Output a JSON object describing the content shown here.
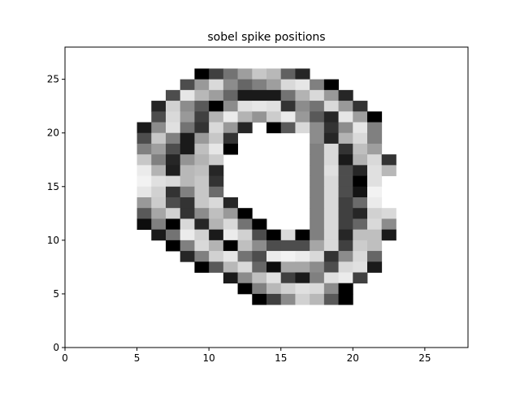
{
  "chart_data": {
    "type": "heatmap",
    "title": "sobel spike positions",
    "xlabel": "",
    "ylabel": "",
    "xlim": [
      0,
      28
    ],
    "ylim": [
      0,
      28
    ],
    "x_ticks": [
      0,
      5,
      10,
      15,
      20,
      25
    ],
    "y_ticks": [
      0,
      5,
      10,
      15,
      20,
      25
    ],
    "x_tick_labels": [
      "0",
      "5",
      "10",
      "15",
      "20",
      "25"
    ],
    "y_tick_labels": [
      "0",
      "5",
      "10",
      "15",
      "20",
      "25"
    ],
    "grid": false,
    "colormap": "gray (0 = black, 1 = white)",
    "background_value": 1.0,
    "cell_size": 1,
    "cells_note": "[x, y, intensity] for each non-white unit cell; x,y are lower-left corner in data units",
    "cells": [
      [
        9,
        25,
        0.0
      ],
      [
        10,
        25,
        0.25
      ],
      [
        11,
        25,
        0.45
      ],
      [
        12,
        25,
        0.62
      ],
      [
        13,
        25,
        0.78
      ],
      [
        14,
        25,
        0.72
      ],
      [
        15,
        25,
        0.38
      ],
      [
        16,
        25,
        0.15
      ],
      [
        8,
        24,
        0.3
      ],
      [
        9,
        24,
        0.6
      ],
      [
        10,
        24,
        0.85
      ],
      [
        11,
        24,
        0.55
      ],
      [
        12,
        24,
        0.4
      ],
      [
        13,
        24,
        0.5
      ],
      [
        14,
        24,
        0.62
      ],
      [
        15,
        24,
        0.85
      ],
      [
        16,
        24,
        0.9
      ],
      [
        17,
        24,
        0.5
      ],
      [
        18,
        24,
        0.0
      ],
      [
        7,
        23,
        0.3
      ],
      [
        8,
        23,
        0.9
      ],
      [
        9,
        23,
        0.72
      ],
      [
        10,
        23,
        0.62
      ],
      [
        11,
        23,
        0.4
      ],
      [
        12,
        23,
        0.1
      ],
      [
        13,
        23,
        0.1
      ],
      [
        14,
        23,
        0.1
      ],
      [
        15,
        23,
        0.45
      ],
      [
        16,
        23,
        0.7
      ],
      [
        17,
        23,
        0.85
      ],
      [
        18,
        23,
        0.6
      ],
      [
        19,
        23,
        0.15
      ],
      [
        6,
        22,
        0.15
      ],
      [
        7,
        22,
        0.82
      ],
      [
        8,
        22,
        0.55
      ],
      [
        9,
        22,
        0.35
      ],
      [
        10,
        22,
        0.0
      ],
      [
        11,
        22,
        0.55
      ],
      [
        12,
        22,
        0.88
      ],
      [
        13,
        22,
        0.9
      ],
      [
        14,
        22,
        0.88
      ],
      [
        15,
        22,
        0.2
      ],
      [
        16,
        22,
        0.55
      ],
      [
        17,
        22,
        0.45
      ],
      [
        18,
        22,
        0.85
      ],
      [
        19,
        22,
        0.6
      ],
      [
        20,
        22,
        0.2
      ],
      [
        6,
        21,
        0.3
      ],
      [
        7,
        21,
        0.85
      ],
      [
        8,
        21,
        0.6
      ],
      [
        9,
        21,
        0.25
      ],
      [
        10,
        21,
        0.7
      ],
      [
        11,
        21,
        0.92
      ],
      [
        12,
        21,
        0.7
      ],
      [
        13,
        21,
        0.58
      ],
      [
        14,
        21,
        0.8
      ],
      [
        15,
        21,
        0.92
      ],
      [
        16,
        21,
        0.6
      ],
      [
        17,
        21,
        0.35
      ],
      [
        18,
        21,
        0.15
      ],
      [
        19,
        21,
        0.9
      ],
      [
        20,
        21,
        0.62
      ],
      [
        21,
        21,
        0.0
      ],
      [
        5,
        20,
        0.1
      ],
      [
        6,
        20,
        0.55
      ],
      [
        7,
        20,
        0.88
      ],
      [
        8,
        20,
        0.45
      ],
      [
        9,
        20,
        0.2
      ],
      [
        10,
        20,
        0.85
      ],
      [
        11,
        20,
        0.6
      ],
      [
        12,
        20,
        0.15
      ],
      [
        14,
        20,
        0.0
      ],
      [
        15,
        20,
        0.35
      ],
      [
        16,
        20,
        0.85
      ],
      [
        17,
        20,
        0.55
      ],
      [
        18,
        20,
        0.2
      ],
      [
        19,
        20,
        0.55
      ],
      [
        20,
        20,
        0.9
      ],
      [
        21,
        20,
        0.5
      ],
      [
        5,
        19,
        0.3
      ],
      [
        6,
        19,
        0.78
      ],
      [
        7,
        19,
        0.5
      ],
      [
        8,
        19,
        0.1
      ],
      [
        9,
        19,
        0.6
      ],
      [
        10,
        19,
        0.78
      ],
      [
        11,
        19,
        0.2
      ],
      [
        17,
        19,
        0.55
      ],
      [
        18,
        19,
        0.15
      ],
      [
        19,
        19,
        0.7
      ],
      [
        20,
        19,
        0.85
      ],
      [
        21,
        19,
        0.5
      ],
      [
        5,
        18,
        0.5
      ],
      [
        6,
        18,
        0.62
      ],
      [
        7,
        18,
        0.3
      ],
      [
        8,
        18,
        0.1
      ],
      [
        9,
        18,
        0.75
      ],
      [
        10,
        18,
        0.9
      ],
      [
        11,
        18,
        0.0
      ],
      [
        17,
        18,
        0.5
      ],
      [
        18,
        18,
        0.85
      ],
      [
        19,
        18,
        0.2
      ],
      [
        20,
        18,
        0.75
      ],
      [
        21,
        18,
        0.62
      ],
      [
        5,
        17,
        0.78
      ],
      [
        6,
        17,
        0.5
      ],
      [
        7,
        17,
        0.15
      ],
      [
        8,
        17,
        0.58
      ],
      [
        9,
        17,
        0.7
      ],
      [
        10,
        17,
        0.8
      ],
      [
        17,
        17,
        0.5
      ],
      [
        18,
        17,
        0.85
      ],
      [
        19,
        17,
        0.1
      ],
      [
        20,
        17,
        0.7
      ],
      [
        21,
        17,
        0.85
      ],
      [
        22,
        17,
        0.2
      ],
      [
        5,
        16,
        0.92
      ],
      [
        6,
        16,
        0.7
      ],
      [
        7,
        16,
        0.12
      ],
      [
        8,
        16,
        0.72
      ],
      [
        9,
        16,
        0.75
      ],
      [
        10,
        16,
        0.15
      ],
      [
        17,
        16,
        0.5
      ],
      [
        18,
        16,
        0.88
      ],
      [
        19,
        16,
        0.3
      ],
      [
        20,
        16,
        0.15
      ],
      [
        21,
        16,
        0.88
      ],
      [
        22,
        16,
        0.72
      ],
      [
        5,
        15,
        0.95
      ],
      [
        6,
        15,
        0.88
      ],
      [
        7,
        15,
        0.85
      ],
      [
        8,
        15,
        0.72
      ],
      [
        9,
        15,
        0.78
      ],
      [
        10,
        15,
        0.2
      ],
      [
        17,
        15,
        0.5
      ],
      [
        18,
        15,
        0.85
      ],
      [
        19,
        15,
        0.3
      ],
      [
        20,
        15,
        0.0
      ],
      [
        21,
        15,
        0.88
      ],
      [
        5,
        14,
        0.9
      ],
      [
        6,
        14,
        0.82
      ],
      [
        7,
        14,
        0.2
      ],
      [
        8,
        14,
        0.5
      ],
      [
        9,
        14,
        0.78
      ],
      [
        10,
        14,
        0.42
      ],
      [
        17,
        14,
        0.5
      ],
      [
        18,
        14,
        0.85
      ],
      [
        19,
        14,
        0.3
      ],
      [
        20,
        14,
        0.08
      ],
      [
        21,
        14,
        0.95
      ],
      [
        5,
        13,
        0.6
      ],
      [
        6,
        13,
        0.8
      ],
      [
        7,
        13,
        0.3
      ],
      [
        8,
        13,
        0.2
      ],
      [
        9,
        13,
        0.78
      ],
      [
        10,
        13,
        0.85
      ],
      [
        11,
        13,
        0.15
      ],
      [
        17,
        13,
        0.5
      ],
      [
        18,
        13,
        0.85
      ],
      [
        19,
        13,
        0.25
      ],
      [
        20,
        13,
        0.42
      ],
      [
        21,
        13,
        0.92
      ],
      [
        5,
        12,
        0.35
      ],
      [
        6,
        12,
        0.65
      ],
      [
        7,
        12,
        0.82
      ],
      [
        8,
        12,
        0.2
      ],
      [
        9,
        12,
        0.55
      ],
      [
        10,
        12,
        0.75
      ],
      [
        11,
        12,
        0.6
      ],
      [
        12,
        12,
        0.0
      ],
      [
        17,
        12,
        0.5
      ],
      [
        18,
        12,
        0.85
      ],
      [
        19,
        12,
        0.25
      ],
      [
        20,
        12,
        0.15
      ],
      [
        21,
        12,
        0.82
      ],
      [
        22,
        12,
        0.85
      ],
      [
        5,
        11,
        0.05
      ],
      [
        6,
        11,
        0.5
      ],
      [
        7,
        11,
        0.0
      ],
      [
        8,
        11,
        0.85
      ],
      [
        9,
        11,
        0.15
      ],
      [
        10,
        11,
        0.7
      ],
      [
        11,
        11,
        0.85
      ],
      [
        12,
        11,
        0.45
      ],
      [
        13,
        11,
        0.0
      ],
      [
        17,
        11,
        0.5
      ],
      [
        18,
        11,
        0.85
      ],
      [
        19,
        11,
        0.25
      ],
      [
        20,
        11,
        0.4
      ],
      [
        21,
        11,
        0.85
      ],
      [
        22,
        11,
        0.55
      ],
      [
        6,
        10,
        0.1
      ],
      [
        7,
        10,
        0.45
      ],
      [
        8,
        10,
        0.92
      ],
      [
        9,
        10,
        0.82
      ],
      [
        10,
        10,
        0.1
      ],
      [
        11,
        10,
        0.92
      ],
      [
        12,
        10,
        0.82
      ],
      [
        13,
        10,
        0.3
      ],
      [
        14,
        10,
        0.0
      ],
      [
        15,
        10,
        0.85
      ],
      [
        16,
        10,
        0.0
      ],
      [
        17,
        10,
        0.5
      ],
      [
        18,
        10,
        0.85
      ],
      [
        19,
        10,
        0.15
      ],
      [
        20,
        10,
        0.75
      ],
      [
        21,
        10,
        0.75
      ],
      [
        22,
        10,
        0.1
      ],
      [
        7,
        9,
        0.0
      ],
      [
        8,
        9,
        0.5
      ],
      [
        9,
        9,
        0.85
      ],
      [
        10,
        9,
        0.7
      ],
      [
        11,
        9,
        0.0
      ],
      [
        12,
        9,
        0.75
      ],
      [
        13,
        9,
        0.55
      ],
      [
        14,
        9,
        0.3
      ],
      [
        15,
        9,
        0.3
      ],
      [
        16,
        9,
        0.3
      ],
      [
        17,
        9,
        0.65
      ],
      [
        18,
        9,
        0.85
      ],
      [
        19,
        9,
        0.25
      ],
      [
        20,
        9,
        0.8
      ],
      [
        21,
        9,
        0.75
      ],
      [
        8,
        8,
        0.15
      ],
      [
        9,
        8,
        0.5
      ],
      [
        10,
        8,
        0.82
      ],
      [
        11,
        8,
        0.9
      ],
      [
        12,
        8,
        0.45
      ],
      [
        13,
        8,
        0.3
      ],
      [
        14,
        8,
        0.92
      ],
      [
        15,
        8,
        0.95
      ],
      [
        16,
        8,
        0.92
      ],
      [
        17,
        8,
        0.85
      ],
      [
        18,
        8,
        0.2
      ],
      [
        19,
        8,
        0.55
      ],
      [
        20,
        8,
        0.85
      ],
      [
        21,
        8,
        0.4
      ],
      [
        9,
        7,
        0.0
      ],
      [
        10,
        7,
        0.35
      ],
      [
        11,
        7,
        0.72
      ],
      [
        12,
        7,
        0.85
      ],
      [
        13,
        7,
        0.4
      ],
      [
        14,
        7,
        0.05
      ],
      [
        15,
        7,
        0.65
      ],
      [
        16,
        7,
        0.65
      ],
      [
        17,
        7,
        0.55
      ],
      [
        18,
        7,
        0.3
      ],
      [
        19,
        7,
        0.85
      ],
      [
        20,
        7,
        0.88
      ],
      [
        21,
        7,
        0.1
      ],
      [
        11,
        6,
        0.1
      ],
      [
        12,
        6,
        0.55
      ],
      [
        13,
        6,
        0.75
      ],
      [
        14,
        6,
        0.88
      ],
      [
        15,
        6,
        0.25
      ],
      [
        16,
        6,
        0.1
      ],
      [
        17,
        6,
        0.5
      ],
      [
        18,
        6,
        0.88
      ],
      [
        19,
        6,
        0.92
      ],
      [
        20,
        6,
        0.25
      ],
      [
        12,
        5,
        0.0
      ],
      [
        13,
        5,
        0.5
      ],
      [
        14,
        5,
        0.72
      ],
      [
        15,
        5,
        0.82
      ],
      [
        16,
        5,
        0.88
      ],
      [
        17,
        5,
        0.85
      ],
      [
        18,
        5,
        0.55
      ],
      [
        19,
        5,
        0.0
      ],
      [
        13,
        4,
        0.0
      ],
      [
        14,
        4,
        0.25
      ],
      [
        15,
        4,
        0.55
      ],
      [
        16,
        4,
        0.82
      ],
      [
        17,
        4,
        0.72
      ],
      [
        18,
        4,
        0.35
      ],
      [
        19,
        4,
        0.0
      ]
    ]
  }
}
